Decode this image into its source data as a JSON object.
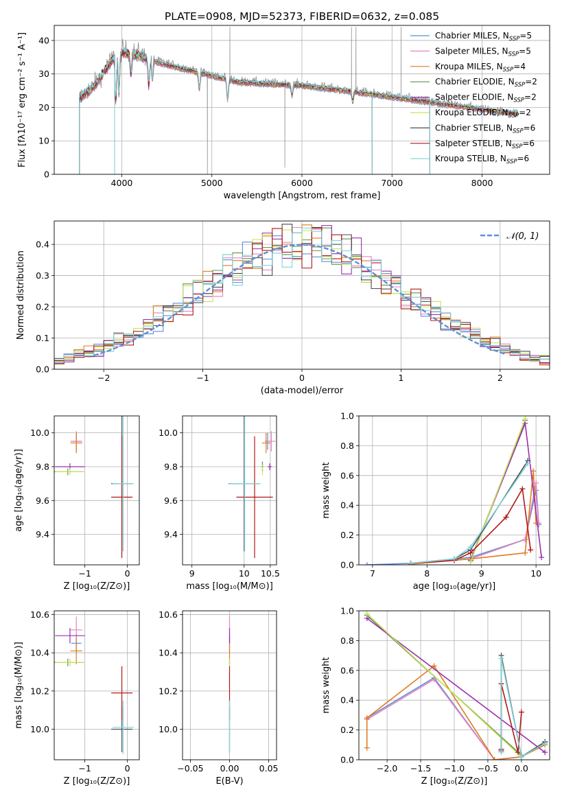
{
  "figure_title": "PLATE=0908, MJD=52373, FIBERID=0632, z=0.085",
  "series_colors": {
    "Chabrier MILES": "#5b8fd9",
    "Salpeter MILES": "#e583c1",
    "Kroupa MILES": "#e07b1f",
    "Chabrier ELODIE": "#5f8f4f",
    "Salpeter ELODIE": "#9b2fae",
    "Kroupa ELODIE": "#c8e35a",
    "Chabrier STELIB": "#4d4d4d",
    "Salpeter STELIB": "#b01818",
    "Kroupa STELIB": "#7fd3dc",
    "data": "#7f7f7f",
    "normal": "#5b8fd9"
  },
  "chart_data": [
    {
      "id": "spectrum",
      "type": "line",
      "title": "PLATE=0908, MJD=52373, FIBERID=0632, z=0.085",
      "xlabel": "wavelength [Angstrom, rest frame]",
      "ylabel": "Flux [fλ10⁻¹⁷ erg cm⁻² s⁻¹ A⁻¹]",
      "xlim": [
        3250,
        8750
      ],
      "ylim": [
        0,
        44.5
      ],
      "xticks": [
        4000,
        5000,
        6000,
        7000,
        8000
      ],
      "yticks": [
        0,
        10,
        20,
        30,
        40
      ],
      "legend_position": "upper right",
      "legend": [
        {
          "label": "Chabrier MILES, N",
          "sub": "SSP",
          "tail": "=5"
        },
        {
          "label": "Salpeter MILES, N",
          "sub": "SSP",
          "tail": "=5"
        },
        {
          "label": "Kroupa MILES, N",
          "sub": "SSP",
          "tail": "=4"
        },
        {
          "label": "Chabrier ELODIE, N",
          "sub": "SSP",
          "tail": "=2"
        },
        {
          "label": "Salpeter ELODIE, N",
          "sub": "SSP",
          "tail": "=2"
        },
        {
          "label": "Kroupa ELODIE, N",
          "sub": "SSP",
          "tail": "=2"
        },
        {
          "label": "Chabrier STELIB, N",
          "sub": "SSP",
          "tail": "=6"
        },
        {
          "label": "Salpeter STELIB, N",
          "sub": "SSP",
          "tail": "=6"
        },
        {
          "label": "Kroupa STELIB, N",
          "sub": "SSP",
          "tail": "=6"
        }
      ],
      "continuum": [
        [
          3530,
          23
        ],
        [
          3700,
          27
        ],
        [
          3850,
          33
        ],
        [
          3950,
          37
        ],
        [
          4050,
          37
        ],
        [
          4200,
          36
        ],
        [
          4400,
          34
        ],
        [
          4700,
          32
        ],
        [
          5000,
          30
        ],
        [
          5300,
          28
        ],
        [
          5600,
          27.5
        ],
        [
          6000,
          27
        ],
        [
          6300,
          26
        ],
        [
          6600,
          25
        ],
        [
          7000,
          23.5
        ],
        [
          7400,
          22
        ],
        [
          7800,
          20.5
        ],
        [
          8200,
          19
        ],
        [
          8400,
          18.5
        ]
      ],
      "absorption_features": [
        [
          3934,
          14
        ],
        [
          3969,
          12
        ],
        [
          4102,
          6
        ],
        [
          4300,
          8
        ],
        [
          4340,
          6
        ],
        [
          4861,
          5
        ],
        [
          5175,
          6
        ],
        [
          5890,
          3
        ],
        [
          6563,
          3
        ]
      ],
      "data_spikes": [
        [
          4950,
          0
        ],
        [
          5200,
          44
        ],
        [
          5810,
          2
        ],
        [
          6550,
          44
        ],
        [
          6600,
          44
        ],
        [
          7100,
          44
        ],
        [
          8150,
          18
        ]
      ],
      "model_drops": [
        [
          3530,
          0
        ],
        [
          3920,
          0
        ],
        [
          6780,
          0
        ],
        [
          7420,
          0
        ]
      ]
    },
    {
      "id": "residuals",
      "type": "histogram",
      "xlabel": "(data-model)/error",
      "ylabel": "Normed distribution",
      "xlim": [
        -2.5,
        2.5
      ],
      "ylim": [
        0,
        0.475
      ],
      "xticks": [
        -2,
        -1,
        0,
        1,
        2
      ],
      "yticks": [
        0.0,
        0.1,
        0.2,
        0.3,
        0.4
      ],
      "legend": [
        "𝒩(0, 1)"
      ],
      "bin_width": 0.1,
      "normal_mean": 0,
      "normal_sigma": 1
    },
    {
      "id": "age_vs_Z",
      "type": "scatter",
      "xlabel": "Z [log₁₀(Z/Z⊙)]",
      "ylabel": "age  [log₁₀(age/yr)]",
      "xlim": [
        -1.72,
        0.28
      ],
      "ylim": [
        9.22,
        10.1
      ],
      "xticks": [
        -1,
        0
      ],
      "yticks": [
        9.4,
        9.6,
        9.8,
        10.0
      ],
      "points": [
        {
          "model": "Chabrier MILES",
          "x": -1.2,
          "y": 9.95,
          "xerr": 0.12,
          "yerr": 0.05
        },
        {
          "model": "Salpeter MILES",
          "x": -1.2,
          "y": 9.95,
          "xerr": 0.14,
          "yerr": 0.06
        },
        {
          "model": "Kroupa MILES",
          "x": -1.2,
          "y": 9.94,
          "xerr": 0.14,
          "yerr": 0.06
        },
        {
          "model": "Chabrier ELODIE",
          "x": -1.4,
          "y": 9.77,
          "xerr": 0.35,
          "yerr": 0.02
        },
        {
          "model": "Salpeter ELODIE",
          "x": -1.35,
          "y": 9.8,
          "xerr": 0.35,
          "yerr": 0.02
        },
        {
          "model": "Kroupa ELODIE",
          "x": -1.35,
          "y": 9.77,
          "xerr": 0.35,
          "yerr": 0.02
        },
        {
          "model": "Chabrier STELIB",
          "x": -0.13,
          "y": 9.7,
          "xerr": 0.25,
          "yerr": 0.4
        },
        {
          "model": "Salpeter STELIB",
          "x": -0.13,
          "y": 9.62,
          "xerr": 0.25,
          "yerr": 0.36
        },
        {
          "model": "Kroupa STELIB",
          "x": -0.1,
          "y": 9.7,
          "xerr": 0.25,
          "yerr": 0.4
        }
      ]
    },
    {
      "id": "age_vs_mass",
      "type": "scatter",
      "xlabel": "mass [log₁₀(M/M⊙)]",
      "ylabel": "",
      "xlim": [
        8.82,
        10.62
      ],
      "ylim": [
        9.22,
        10.1
      ],
      "xticks": [
        9,
        10,
        10.5
      ],
      "ytick_values": [
        9.4,
        9.6,
        9.8,
        10.0
      ],
      "ytick_labels": [
        "9.4",
        "9.6",
        "9.8",
        "10.0"
      ],
      "points": [
        {
          "model": "Chabrier MILES",
          "x": 10.45,
          "y": 9.95,
          "xerr": 0.05,
          "yerr": 0.05
        },
        {
          "model": "Salpeter MILES",
          "x": 10.52,
          "y": 9.95,
          "xerr": 0.08,
          "yerr": 0.06
        },
        {
          "model": "Kroupa MILES",
          "x": 10.42,
          "y": 9.94,
          "xerr": 0.08,
          "yerr": 0.06
        },
        {
          "model": "Chabrier ELODIE",
          "x": 10.35,
          "y": 9.8,
          "xerr": 0.02,
          "yerr": 0.03
        },
        {
          "model": "Salpeter ELODIE",
          "x": 10.49,
          "y": 9.8,
          "xerr": 0.04,
          "yerr": 0.02
        },
        {
          "model": "Kroupa ELODIE",
          "x": 10.35,
          "y": 9.78,
          "xerr": 0.02,
          "yerr": 0.03
        },
        {
          "model": "Chabrier STELIB",
          "x": 10.0,
          "y": 9.7,
          "xerr": 0.3,
          "yerr": 0.4
        },
        {
          "model": "Salpeter STELIB",
          "x": 10.2,
          "y": 9.62,
          "xerr": 0.35,
          "yerr": 0.36
        },
        {
          "model": "Kroupa STELIB",
          "x": 10.01,
          "y": 9.7,
          "xerr": 0.3,
          "yerr": 0.4
        }
      ]
    },
    {
      "id": "weight_vs_age",
      "type": "line",
      "xlabel": "age  [log₁₀(age/yr)]",
      "ylabel": "mass weight",
      "xlim": [
        6.75,
        10.25
      ],
      "ylim": [
        0,
        1.0
      ],
      "xticks": [
        7,
        8,
        9,
        10
      ],
      "yticks": [
        0.0,
        0.2,
        0.4,
        0.6,
        0.8,
        1.0
      ],
      "series": [
        {
          "name": "Chabrier MILES",
          "x": [
            6.9,
            7.7,
            8.8,
            9.8,
            10.0,
            10.05
          ],
          "values": [
            0.0,
            0.01,
            0.05,
            0.17,
            0.5,
            0.27
          ]
        },
        {
          "name": "Salpeter MILES",
          "x": [
            7.7,
            8.8,
            9.8,
            10.0,
            10.05
          ],
          "values": [
            0.005,
            0.04,
            0.17,
            0.55,
            0.28
          ]
        },
        {
          "name": "Kroupa MILES",
          "x": [
            7.7,
            8.8,
            9.8,
            9.95,
            10.0
          ],
          "values": [
            0.005,
            0.04,
            0.08,
            0.63,
            0.28
          ]
        },
        {
          "name": "Chabrier ELODIE",
          "x": [
            8.8,
            9.8
          ],
          "values": [
            0.03,
            0.97
          ]
        },
        {
          "name": "Salpeter ELODIE",
          "x": [
            8.8,
            9.8,
            10.1
          ],
          "values": [
            0.03,
            0.95,
            0.05
          ]
        },
        {
          "name": "Kroupa ELODIE",
          "x": [
            8.8,
            9.8
          ],
          "values": [
            0.02,
            0.98
          ]
        },
        {
          "name": "Chabrier STELIB",
          "x": [
            7.7,
            8.5,
            8.8,
            9.85
          ],
          "values": [
            0.01,
            0.04,
            0.1,
            0.7
          ]
        },
        {
          "name": "Salpeter STELIB",
          "x": [
            7.7,
            8.5,
            8.8,
            9.45,
            9.75,
            9.9
          ],
          "values": [
            0.01,
            0.03,
            0.08,
            0.32,
            0.51,
            0.1
          ]
        },
        {
          "name": "Kroupa STELIB",
          "x": [
            7.7,
            8.5,
            8.8,
            9.85
          ],
          "values": [
            0.01,
            0.04,
            0.12,
            0.68
          ]
        }
      ]
    },
    {
      "id": "mass_vs_Z",
      "type": "scatter",
      "xlabel": "Z [log₁₀(Z/Z⊙)]",
      "ylabel": "mass [log₁₀(M/M⊙)]",
      "xlim": [
        -1.72,
        0.28
      ],
      "ylim": [
        9.84,
        10.62
      ],
      "xticks": [
        -1,
        0
      ],
      "yticks": [
        10.0,
        10.2,
        10.4,
        10.6
      ],
      "points": [
        {
          "model": "Chabrier MILES",
          "x": -1.2,
          "y": 10.45,
          "xerr": 0.12,
          "yerr": 0.05
        },
        {
          "model": "Salpeter MILES",
          "x": -1.2,
          "y": 10.52,
          "xerr": 0.14,
          "yerr": 0.07
        },
        {
          "model": "Kroupa MILES",
          "x": -1.2,
          "y": 10.41,
          "xerr": 0.14,
          "yerr": 0.07
        },
        {
          "model": "Chabrier ELODIE",
          "x": -1.4,
          "y": 10.35,
          "xerr": 0.35,
          "yerr": 0.02
        },
        {
          "model": "Salpeter ELODIE",
          "x": -1.35,
          "y": 10.49,
          "xerr": 0.35,
          "yerr": 0.04
        },
        {
          "model": "Kroupa ELODIE",
          "x": -1.35,
          "y": 10.35,
          "xerr": 0.35,
          "yerr": 0.02
        },
        {
          "model": "Chabrier STELIB",
          "x": -0.13,
          "y": 10.0,
          "xerr": 0.25,
          "yerr": 0.12
        },
        {
          "model": "Salpeter STELIB",
          "x": -0.13,
          "y": 10.19,
          "xerr": 0.25,
          "yerr": 0.14
        },
        {
          "model": "Kroupa STELIB",
          "x": -0.1,
          "y": 10.01,
          "xerr": 0.25,
          "yerr": 0.14
        }
      ]
    },
    {
      "id": "mass_vs_ebv",
      "type": "scatter",
      "xlabel": "E(B-V)",
      "ylabel": "",
      "xlim": [
        -0.06,
        0.06
      ],
      "ylim": [
        9.84,
        10.62
      ],
      "xticks": [
        -0.05,
        0.0,
        0.05
      ],
      "xtick_labels": [
        "−0.05",
        "0.00",
        "0.05"
      ],
      "ytick_values": [
        10.0,
        10.2,
        10.4,
        10.6
      ],
      "ytick_labels": [
        "10.0",
        "10.2",
        "10.4",
        "10.6"
      ],
      "points": [
        {
          "model": "Chabrier MILES",
          "x": 0.0,
          "y": 10.45,
          "xerr": 0,
          "yerr": 0.05
        },
        {
          "model": "Salpeter MILES",
          "x": 0.0,
          "y": 10.52,
          "xerr": 0,
          "yerr": 0.07
        },
        {
          "model": "Kroupa MILES",
          "x": 0.0,
          "y": 10.41,
          "xerr": 0,
          "yerr": 0.07
        },
        {
          "model": "Chabrier ELODIE",
          "x": 0.0,
          "y": 10.35,
          "xerr": 0,
          "yerr": 0.02
        },
        {
          "model": "Salpeter ELODIE",
          "x": 0.0,
          "y": 10.49,
          "xerr": 0,
          "yerr": 0.04
        },
        {
          "model": "Kroupa ELODIE",
          "x": 0.0,
          "y": 10.35,
          "xerr": 0,
          "yerr": 0.02
        },
        {
          "model": "Chabrier STELIB",
          "x": 0.0,
          "y": 10.0,
          "xerr": 0,
          "yerr": 0.12
        },
        {
          "model": "Salpeter STELIB",
          "x": 0.0,
          "y": 10.19,
          "xerr": 0,
          "yerr": 0.14
        },
        {
          "model": "Kroupa STELIB",
          "x": 0.0,
          "y": 10.01,
          "xerr": 0,
          "yerr": 0.14
        }
      ]
    },
    {
      "id": "weight_vs_Z",
      "type": "line",
      "xlabel": "Z [log₁₀(Z/Z⊙)]",
      "ylabel": "mass weight",
      "xlim": [
        -2.42,
        0.42
      ],
      "ylim": [
        0,
        1.0
      ],
      "xticks": [
        -2.0,
        -1.5,
        -1.0,
        -0.5,
        0.0
      ],
      "xtick_labels": [
        "−2.0",
        "−1.5",
        "−1.0",
        "−0.5",
        "0.0"
      ],
      "yticks": [
        0.0,
        0.2,
        0.4,
        0.6,
        0.8,
        1.0
      ],
      "series": [
        {
          "name": "Chabrier MILES",
          "x": [
            -2.3,
            -1.3,
            -0.4,
            0.0,
            0.35
          ],
          "values": [
            0.28,
            0.55,
            0.0,
            0.02,
            0.12
          ]
        },
        {
          "name": "Salpeter MILES",
          "x": [
            -2.3,
            -1.3,
            -0.4,
            0.0,
            0.35
          ],
          "values": [
            0.27,
            0.54,
            0.0,
            0.02,
            0.11
          ]
        },
        {
          "name": "Kroupa MILES",
          "x": [
            -2.3,
            -2.3,
            -1.3,
            -0.4,
            0.0,
            0.35
          ],
          "values": [
            0.08,
            0.28,
            0.63,
            0.0,
            0.02,
            0.1
          ]
        },
        {
          "name": "Chabrier ELODIE",
          "x": [
            -2.3,
            0.0
          ],
          "values": [
            0.97,
            0.03
          ]
        },
        {
          "name": "Salpeter ELODIE",
          "x": [
            -2.3,
            0.35
          ],
          "values": [
            0.95,
            0.05
          ]
        },
        {
          "name": "Kroupa ELODIE",
          "x": [
            -2.3,
            0.0
          ],
          "values": [
            0.98,
            0.02
          ]
        },
        {
          "name": "Chabrier STELIB",
          "x": [
            -0.3,
            -0.3,
            0.0,
            0.35
          ],
          "values": [
            0.06,
            0.7,
            0.02,
            0.12
          ]
        },
        {
          "name": "Salpeter STELIB",
          "x": [
            -0.3,
            -0.3,
            -0.05,
            0.0
          ],
          "values": [
            0.07,
            0.51,
            0.05,
            0.32
          ]
        },
        {
          "name": "Kroupa STELIB",
          "x": [
            -0.3,
            -0.3,
            0.0,
            0.35
          ],
          "values": [
            0.05,
            0.68,
            0.02,
            0.11
          ]
        }
      ]
    }
  ]
}
